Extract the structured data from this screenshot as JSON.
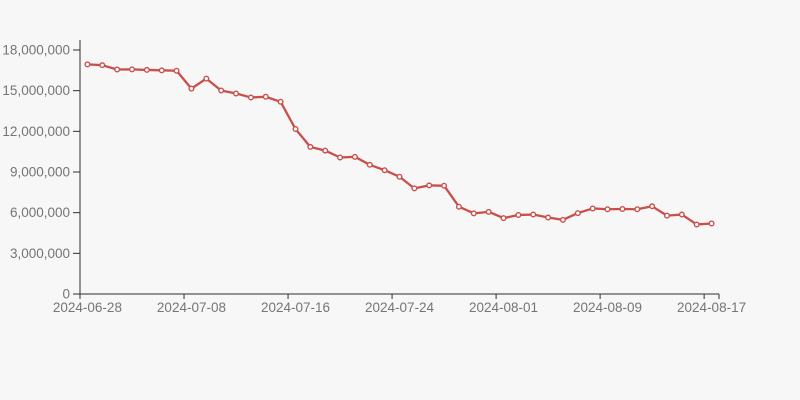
{
  "page": {
    "background_color": "#f7f7f7"
  },
  "chart_data": {
    "type": "line",
    "title": "",
    "xlabel": "",
    "ylabel": "",
    "grid": "off",
    "legend": "none",
    "num_points": 43,
    "x_tick_labels": [
      "2024-06-28",
      "2024-07-08",
      "2024-07-16",
      "2024-07-24",
      "2024-08-01",
      "2024-08-09",
      "2024-08-17"
    ],
    "x_tick_point_indices": [
      0,
      7,
      14,
      21,
      28,
      35,
      42
    ],
    "values": [
      16940000,
      16880000,
      16560000,
      16570000,
      16530000,
      16500000,
      16470000,
      15150000,
      15890000,
      15010000,
      14790000,
      14500000,
      14550000,
      14180000,
      12170000,
      10850000,
      10580000,
      10070000,
      10120000,
      9530000,
      9130000,
      8650000,
      7790000,
      8010000,
      7990000,
      6440000,
      5950000,
      6060000,
      5600000,
      5830000,
      5860000,
      5640000,
      5470000,
      5970000,
      6310000,
      6250000,
      6270000,
      6250000,
      6470000,
      5780000,
      5860000,
      5130000,
      5200000
    ],
    "ylim": [
      0,
      18000000
    ],
    "y_ticks": [
      0,
      3000000,
      6000000,
      9000000,
      12000000,
      15000000,
      18000000
    ],
    "y_tick_labels": [
      "0",
      "3,000,000",
      "6,000,000",
      "9,000,000",
      "12,000,000",
      "15,000,000",
      "18,000,000"
    ],
    "line_color": "#c8504c",
    "marker": "open-circle",
    "marker_fill": "#ffffff",
    "axis_color": "#2f2f2f",
    "label_color": "#757575",
    "background": "#f7f7f7"
  }
}
